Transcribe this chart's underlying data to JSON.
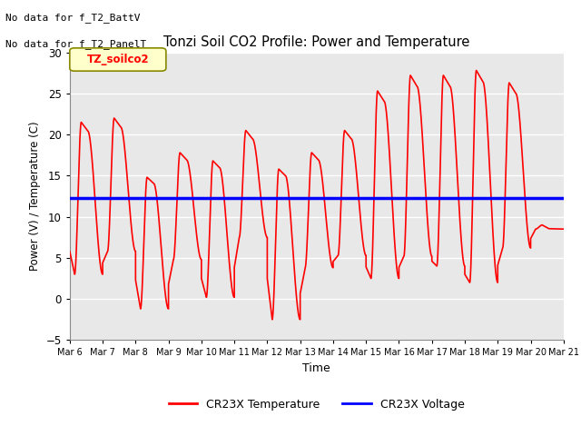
{
  "title": "Tonzi Soil CO2 Profile: Power and Temperature",
  "ylabel": "Power (V) / Temperature (C)",
  "xlabel": "Time",
  "ylim": [
    -5,
    30
  ],
  "yticks": [
    -5,
    0,
    5,
    10,
    15,
    20,
    25,
    30
  ],
  "annotation1": "No data for f_T2_BattV",
  "annotation2": "No data for f_T2_PanelT",
  "legend_label": "TZ_soilco2",
  "legend_temp": "CR23X Temperature",
  "legend_volt": "CR23X Voltage",
  "temp_color": "#ff0000",
  "volt_color": "#0000ff",
  "volt_value": 12.3,
  "background_color": "#e8e8e8",
  "x_start_day": 6,
  "x_end_day": 21,
  "x_tick_days": [
    6,
    7,
    8,
    9,
    10,
    11,
    12,
    13,
    14,
    15,
    16,
    17,
    18,
    19,
    20,
    21
  ],
  "x_tick_labels": [
    "Mar 6",
    "Mar 7",
    "Mar 8",
    "Mar 9",
    "Mar 10",
    "Mar 11",
    "Mar 12",
    "Mar 13",
    "Mar 14",
    "Mar 15",
    "Mar 16",
    "Mar 17",
    "Mar 18",
    "Mar 19",
    "Mar 20",
    "Mar 21"
  ],
  "daily_peaks": [
    21.5,
    22.0,
    14.8,
    17.8,
    16.8,
    20.5,
    15.8,
    17.8,
    20.5,
    25.3,
    27.2,
    27.2,
    27.8,
    26.3,
    9.0
  ],
  "daily_troughs": [
    3.0,
    5.8,
    -1.2,
    4.8,
    0.2,
    7.5,
    -2.5,
    3.8,
    5.3,
    2.5,
    5.2,
    4.0,
    2.0,
    6.2,
    8.5
  ],
  "start_val": 5.8
}
